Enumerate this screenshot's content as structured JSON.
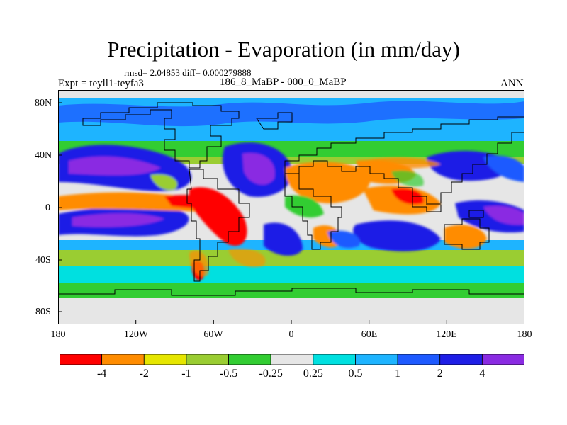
{
  "title": "Precipitation - Evaporation (in mm/day)",
  "stats": "rmsd= 2.04853 diff= 0.000279888",
  "left_label": "Expt = teyll1-teyfa3",
  "center_label": "186_8_MaBP - 000_0_MaBP",
  "right_label": "ANN",
  "lat_ticks": [
    "80N",
    "40N",
    "0",
    "40S",
    "80S"
  ],
  "lon_ticks": [
    "180",
    "120W",
    "60W",
    "0",
    "60E",
    "120E",
    "180"
  ],
  "colorbar": {
    "colors": [
      "#ff0000",
      "#ff8c00",
      "#e6e600",
      "#9acd32",
      "#32cd32",
      "#e6e6e6",
      "#00e0e0",
      "#1eb4ff",
      "#1e5aff",
      "#1e1ee6",
      "#8a2be2"
    ],
    "labels": [
      "-4",
      "-2",
      "-1",
      "-0.5",
      "-0.25",
      "0.25",
      "0.5",
      "1",
      "2",
      "4"
    ]
  }
}
